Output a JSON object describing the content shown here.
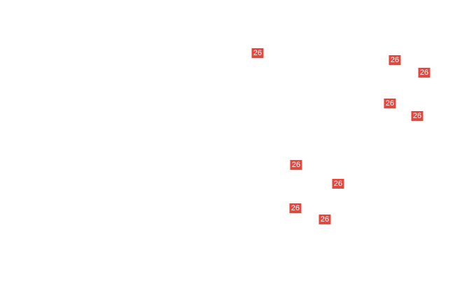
{
  "marker_color": "#e8453c",
  "markers": [
    {
      "label": "26"
    },
    {
      "label": "26"
    },
    {
      "label": "26"
    },
    {
      "label": "26"
    },
    {
      "label": "26"
    },
    {
      "label": "26"
    },
    {
      "label": "26"
    },
    {
      "label": "26"
    },
    {
      "label": "26"
    }
  ]
}
